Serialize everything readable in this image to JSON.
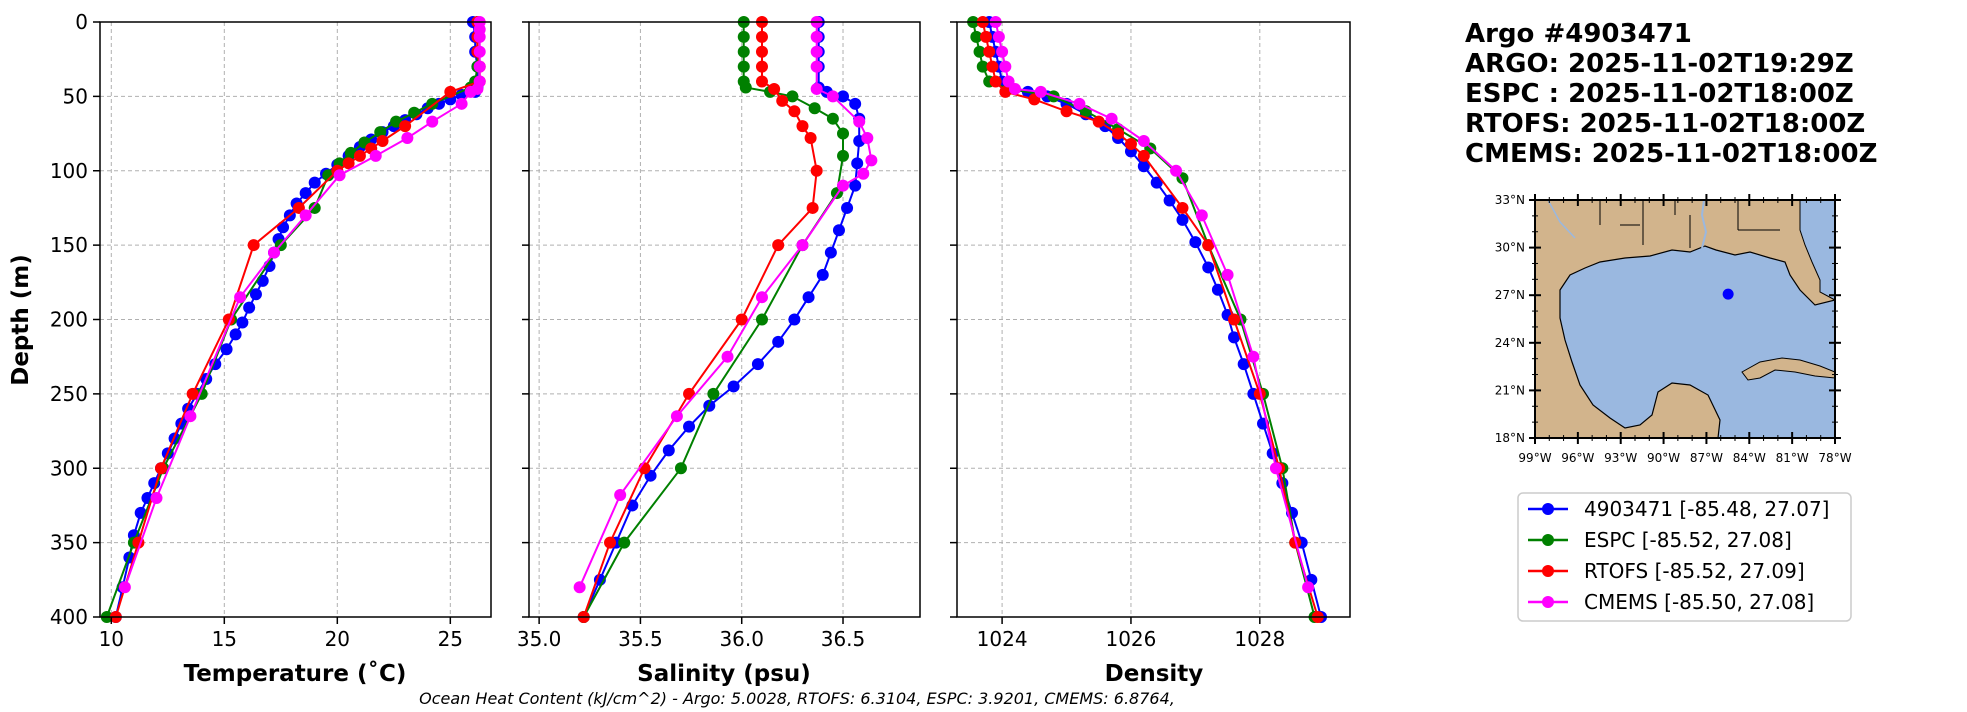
{
  "chart_data": [
    {
      "type": "line",
      "panel": "temperature",
      "xlabel": "Temperature (˚C)",
      "ylabel": "Depth (m)",
      "xlim": [
        9.5,
        26.8
      ],
      "ylim": [
        400,
        0
      ],
      "xticks": [
        10,
        15,
        20,
        25
      ],
      "yticks": [
        0,
        50,
        100,
        150,
        200,
        250,
        300,
        350,
        400
      ],
      "grid": true,
      "series": [
        {
          "name": "4903471 [-85.48, 27.07]",
          "color": "#0000ff",
          "x": [
            26.0,
            26.1,
            26.1,
            26.2,
            26.2,
            26.2,
            26.1,
            25.5,
            25.0,
            24.5,
            24.0,
            23.5,
            23.0,
            22.5,
            22.0,
            21.5,
            21.0,
            20.5,
            20.0,
            19.5,
            19.0,
            18.6,
            18.2,
            17.9,
            17.6,
            17.4,
            17.2,
            17.0,
            16.7,
            16.4,
            16.1,
            15.8,
            15.5,
            15.1,
            14.6,
            14.2,
            13.8,
            13.4,
            13.1,
            12.8,
            12.5,
            12.2,
            11.9,
            11.6,
            11.3,
            11.0,
            10.8,
            10.5,
            10.2
          ],
          "y": [
            0,
            10,
            20,
            30,
            40,
            44,
            47,
            49,
            52,
            55,
            58,
            62,
            66,
            70,
            74,
            79,
            84,
            90,
            96,
            102,
            108,
            115,
            122,
            130,
            138,
            146,
            155,
            164,
            174,
            183,
            192,
            202,
            210,
            220,
            230,
            240,
            250,
            260,
            270,
            280,
            290,
            300,
            310,
            320,
            330,
            345,
            360,
            380,
            400
          ]
        },
        {
          "name": "ESPC [-85.52, 27.08]",
          "color": "#008000",
          "x": [
            26.2,
            26.2,
            26.2,
            26.2,
            26.1,
            25.9,
            24.2,
            23.4,
            22.6,
            21.9,
            21.2,
            20.6,
            20.1,
            19.6,
            19.0,
            17.5,
            15.3,
            14.0,
            12.3,
            11.0,
            9.8
          ],
          "y": [
            0,
            10,
            20,
            30,
            40,
            44,
            55,
            61,
            67,
            74,
            81,
            88,
            95,
            103,
            125,
            150,
            200,
            250,
            300,
            350,
            400
          ]
        },
        {
          "name": "RTOFS [-85.52, 27.09]",
          "color": "#ff0000",
          "x": [
            26.2,
            26.2,
            26.2,
            26.3,
            26.3,
            25.0,
            23.0,
            22.0,
            21.5,
            21.0,
            20.5,
            20.0,
            18.3,
            16.3,
            15.2,
            13.6,
            12.2,
            11.2,
            10.2
          ],
          "y": [
            0,
            10,
            20,
            30,
            40,
            47,
            70,
            80,
            85,
            90,
            95,
            100,
            125,
            150,
            200,
            250,
            300,
            350,
            400
          ]
        },
        {
          "name": "CMEMS [-85.50, 27.08]",
          "color": "#ff00ff",
          "x": [
            26.3,
            26.3,
            26.3,
            26.3,
            26.3,
            26.3,
            26.2,
            25.9,
            25.5,
            24.2,
            23.1,
            21.7,
            20.1,
            18.6,
            17.2,
            15.7,
            13.5,
            12.0,
            10.6
          ],
          "y": [
            0,
            5,
            10,
            20,
            30,
            40,
            45,
            47,
            55,
            67,
            78,
            90,
            103,
            130,
            155,
            185,
            265,
            320,
            380
          ]
        }
      ]
    },
    {
      "type": "line",
      "panel": "salinity",
      "xlabel": "Salinity (psu)",
      "ylabel": "",
      "xlim": [
        34.95,
        36.88
      ],
      "ylim": [
        400,
        0
      ],
      "xticks": [
        35.0,
        35.5,
        36.0,
        36.5
      ],
      "xticklabels": [
        "35.0",
        "35.5",
        "36.0",
        "36.5"
      ],
      "grid": true,
      "series": [
        {
          "name": "4903471 [-85.48, 27.07]",
          "color": "#0000ff",
          "x": [
            36.38,
            36.38,
            36.38,
            36.38,
            36.38,
            36.42,
            36.5,
            36.56,
            36.58,
            36.58,
            36.57,
            36.56,
            36.52,
            36.48,
            36.44,
            36.4,
            36.33,
            36.26,
            36.18,
            36.08,
            35.96,
            35.84,
            35.74,
            35.64,
            35.55,
            35.46,
            35.38,
            35.3,
            35.22
          ],
          "y": [
            0,
            10,
            20,
            30,
            44,
            47,
            50,
            55,
            65,
            80,
            95,
            110,
            125,
            140,
            155,
            170,
            185,
            200,
            215,
            230,
            245,
            258,
            272,
            288,
            305,
            325,
            350,
            375,
            400
          ]
        },
        {
          "name": "ESPC [-85.52, 27.08]",
          "color": "#008000",
          "x": [
            36.01,
            36.01,
            36.01,
            36.01,
            36.01,
            36.02,
            36.14,
            36.25,
            36.36,
            36.45,
            36.5,
            36.5,
            36.47,
            36.3,
            36.1,
            35.86,
            35.7,
            35.42,
            35.22
          ],
          "y": [
            0,
            10,
            20,
            30,
            40,
            44,
            47,
            50,
            58,
            65,
            75,
            90,
            115,
            150,
            200,
            250,
            300,
            350,
            400
          ]
        },
        {
          "name": "RTOFS [-85.52, 27.09]",
          "color": "#ff0000",
          "x": [
            36.1,
            36.1,
            36.1,
            36.1,
            36.1,
            36.16,
            36.2,
            36.26,
            36.3,
            36.34,
            36.37,
            36.35,
            36.18,
            36.0,
            35.74,
            35.52,
            35.35,
            35.22
          ],
          "y": [
            0,
            10,
            20,
            30,
            40,
            45,
            53,
            60,
            70,
            78,
            100,
            125,
            150,
            200,
            250,
            300,
            350,
            400
          ]
        },
        {
          "name": "CMEMS [-85.50, 27.08]",
          "color": "#ff00ff",
          "x": [
            36.37,
            36.37,
            36.37,
            36.37,
            36.37,
            36.45,
            36.58,
            36.62,
            36.64,
            36.6,
            36.5,
            36.3,
            36.1,
            35.93,
            35.68,
            35.4,
            35.2
          ],
          "y": [
            0,
            10,
            20,
            30,
            45,
            50,
            67,
            78,
            93,
            102,
            110,
            150,
            185,
            225,
            265,
            318,
            380
          ]
        }
      ]
    },
    {
      "type": "line",
      "panel": "density",
      "xlabel": "Density",
      "ylabel": "",
      "xlim": [
        1023.3,
        1029.4
      ],
      "ylim": [
        400,
        0
      ],
      "xticks": [
        1024,
        1026,
        1028
      ],
      "grid": true,
      "series": [
        {
          "name": "4903471 [-85.48, 27.07]",
          "color": "#0000ff",
          "x": [
            1023.8,
            1023.85,
            1023.9,
            1023.95,
            1024.0,
            1024.1,
            1024.4,
            1024.7,
            1025.0,
            1025.3,
            1025.6,
            1025.8,
            1026.0,
            1026.2,
            1026.4,
            1026.6,
            1026.8,
            1027.0,
            1027.2,
            1027.35,
            1027.5,
            1027.6,
            1027.75,
            1027.9,
            1028.05,
            1028.2,
            1028.35,
            1028.5,
            1028.65,
            1028.8,
            1028.95
          ],
          "y": [
            0,
            10,
            20,
            30,
            40,
            45,
            47,
            50,
            55,
            62,
            70,
            78,
            87,
            97,
            108,
            120,
            133,
            148,
            165,
            180,
            197,
            212,
            230,
            250,
            270,
            290,
            310,
            330,
            350,
            375,
            400
          ]
        },
        {
          "name": "ESPC [-85.52, 27.08]",
          "color": "#008000",
          "x": [
            1023.55,
            1023.6,
            1023.65,
            1023.7,
            1023.8,
            1024.1,
            1024.8,
            1025.3,
            1025.8,
            1026.3,
            1026.8,
            1027.2,
            1027.7,
            1028.05,
            1028.35,
            1028.55,
            1028.85
          ],
          "y": [
            0,
            10,
            20,
            30,
            40,
            45,
            50,
            60,
            72,
            85,
            105,
            150,
            200,
            250,
            300,
            350,
            400
          ]
        },
        {
          "name": "RTOFS [-85.52, 27.09]",
          "color": "#ff0000",
          "x": [
            1023.7,
            1023.75,
            1023.8,
            1023.85,
            1023.9,
            1024.05,
            1024.5,
            1025.0,
            1025.5,
            1025.8,
            1026.0,
            1026.2,
            1026.8,
            1027.2,
            1027.6,
            1028.0,
            1028.3,
            1028.55,
            1028.9
          ],
          "y": [
            0,
            10,
            20,
            30,
            40,
            47,
            52,
            60,
            67,
            75,
            82,
            90,
            125,
            150,
            200,
            250,
            300,
            350,
            400
          ]
        },
        {
          "name": "CMEMS [-85.50, 27.08]",
          "color": "#ff00ff",
          "x": [
            1023.9,
            1023.95,
            1024.0,
            1024.05,
            1024.1,
            1024.2,
            1024.6,
            1025.2,
            1025.7,
            1026.2,
            1026.7,
            1027.1,
            1027.5,
            1027.9,
            1028.25,
            1028.75
          ],
          "y": [
            0,
            10,
            20,
            30,
            40,
            45,
            47,
            55,
            65,
            80,
            100,
            130,
            170,
            225,
            300,
            380
          ]
        }
      ]
    }
  ],
  "info": {
    "title_lines": [
      "Argo #4903471",
      "ARGO: 2025-11-02T19:29Z",
      "ESPC : 2025-11-02T18:00Z",
      "RTOFS: 2025-11-02T18:00Z",
      "CMEMS: 2025-11-02T18:00Z"
    ]
  },
  "map": {
    "lon_range": [
      -99,
      -78
    ],
    "lat_range": [
      18,
      33
    ],
    "lat_ticks": [
      33,
      30,
      27,
      24,
      21,
      18
    ],
    "lat_labels": [
      "33°N",
      "30°N",
      "27°N",
      "24°N",
      "21°N",
      "18°N"
    ],
    "lon_ticks": [
      -99,
      -96,
      -93,
      -90,
      -87,
      -84,
      -81,
      -78
    ],
    "lon_labels": [
      "99°W",
      "96°W",
      "93°W",
      "90°W",
      "87°W",
      "84°W",
      "81°W",
      "78°W"
    ],
    "float_location": {
      "lon": -85.48,
      "lat": 27.07
    },
    "land_color": "#d2b48c",
    "water_color": "#9ab8e0",
    "marker_color": "#0000ff"
  },
  "legend": {
    "items": [
      {
        "label": "4903471 [-85.48, 27.07]",
        "color": "#0000ff"
      },
      {
        "label": "ESPC [-85.52, 27.08]",
        "color": "#008000"
      },
      {
        "label": "RTOFS [-85.52, 27.09]",
        "color": "#ff0000"
      },
      {
        "label": "CMEMS [-85.50, 27.08]",
        "color": "#ff00ff"
      }
    ]
  },
  "footer": {
    "text": "Ocean Heat Content (kJ/cm^2) - Argo: 5.0028,  RTOFS: 6.3104,  ESPC: 3.9201,  CMEMS: 6.8764,"
  }
}
